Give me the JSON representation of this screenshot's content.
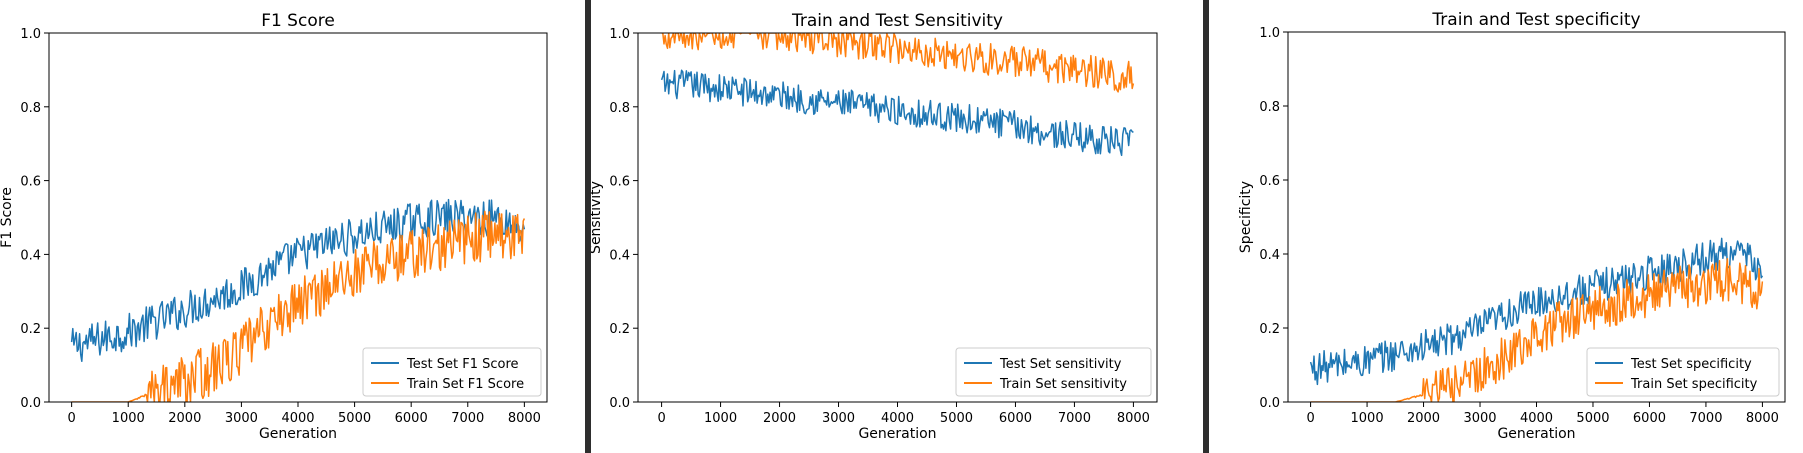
{
  "colors": {
    "test": "#1f77b4",
    "train": "#ff7f0e",
    "axis": "#000000",
    "separator": "#2e2e2e"
  },
  "chart_data": [
    {
      "type": "line",
      "title": "F1 Score",
      "xlabel": "Generation",
      "ylabel": "F1 Score",
      "xlim": [
        -400,
        8400
      ],
      "ylim": [
        0.0,
        1.0
      ],
      "xticks": [
        "0",
        "1000",
        "2000",
        "3000",
        "4000",
        "5000",
        "6000",
        "7000",
        "8000"
      ],
      "yticks": [
        "0.0",
        "0.2",
        "0.4",
        "0.6",
        "0.8",
        "1.0"
      ],
      "grid": false,
      "legend": "lower-right",
      "series": [
        {
          "name": "Test Set F1 Score",
          "x": [
            0,
            500,
            1000,
            1500,
            2000,
            2500,
            3000,
            3500,
            4000,
            4500,
            5000,
            5500,
            6000,
            6500,
            7000,
            7500,
            8000
          ],
          "y": [
            0.15,
            0.17,
            0.19,
            0.22,
            0.25,
            0.28,
            0.31,
            0.36,
            0.4,
            0.43,
            0.45,
            0.47,
            0.49,
            0.5,
            0.5,
            0.5,
            0.47
          ]
        },
        {
          "name": "Train Set F1 Score",
          "x": [
            0,
            500,
            1000,
            1500,
            2000,
            2500,
            3000,
            3500,
            4000,
            4500,
            5000,
            5500,
            6000,
            6500,
            7000,
            7500,
            8000
          ],
          "y": [
            0.0,
            0.0,
            0.0,
            0.03,
            0.06,
            0.09,
            0.14,
            0.21,
            0.27,
            0.31,
            0.35,
            0.38,
            0.4,
            0.42,
            0.44,
            0.46,
            0.44
          ]
        }
      ]
    },
    {
      "type": "line",
      "title": "Train and Test Sensitivity",
      "xlabel": "Generation",
      "ylabel": "Sensitivity",
      "xlim": [
        -400,
        8400
      ],
      "ylim": [
        0.0,
        1.0
      ],
      "xticks": [
        "0",
        "1000",
        "2000",
        "3000",
        "4000",
        "5000",
        "6000",
        "7000",
        "8000"
      ],
      "yticks": [
        "0.0",
        "0.2",
        "0.4",
        "0.6",
        "0.8",
        "1.0"
      ],
      "grid": false,
      "legend": "lower-right",
      "series": [
        {
          "name": "Test Set sensitivity",
          "x": [
            0,
            500,
            1000,
            1500,
            2000,
            2500,
            3000,
            3500,
            4000,
            4500,
            5000,
            5500,
            6000,
            6500,
            7000,
            7500,
            8000
          ],
          "y": [
            0.86,
            0.86,
            0.85,
            0.84,
            0.83,
            0.82,
            0.81,
            0.8,
            0.79,
            0.78,
            0.77,
            0.76,
            0.75,
            0.73,
            0.72,
            0.71,
            0.7
          ]
        },
        {
          "name": "Train Set sensitivity",
          "x": [
            0,
            500,
            1000,
            1500,
            2000,
            2500,
            3000,
            3500,
            4000,
            4500,
            5000,
            5500,
            6000,
            6500,
            7000,
            7500,
            8000
          ],
          "y": [
            1.0,
            1.0,
            1.0,
            1.0,
            1.0,
            0.99,
            0.98,
            0.97,
            0.96,
            0.95,
            0.94,
            0.93,
            0.92,
            0.91,
            0.9,
            0.89,
            0.88
          ]
        }
      ]
    },
    {
      "type": "line",
      "title": "Train and Test specificity",
      "xlabel": "Generation",
      "ylabel": "Specificity",
      "xlim": [
        -400,
        8400
      ],
      "ylim": [
        0.0,
        1.0
      ],
      "xticks": [
        "0",
        "1000",
        "2000",
        "3000",
        "4000",
        "5000",
        "6000",
        "7000",
        "8000"
      ],
      "yticks": [
        "0.0",
        "0.2",
        "0.4",
        "0.6",
        "0.8",
        "1.0"
      ],
      "grid": false,
      "legend": "lower-right",
      "series": [
        {
          "name": "Test Set specificity",
          "x": [
            0,
            500,
            1000,
            1500,
            2000,
            2500,
            3000,
            3500,
            4000,
            4500,
            5000,
            5500,
            6000,
            6500,
            7000,
            7500,
            8000
          ],
          "y": [
            0.09,
            0.1,
            0.11,
            0.13,
            0.15,
            0.17,
            0.2,
            0.24,
            0.27,
            0.29,
            0.31,
            0.33,
            0.35,
            0.37,
            0.39,
            0.41,
            0.36
          ]
        },
        {
          "name": "Train Set specificity",
          "x": [
            0,
            500,
            1000,
            1500,
            2000,
            2500,
            3000,
            3500,
            4000,
            4500,
            5000,
            5500,
            6000,
            6500,
            7000,
            7500,
            8000
          ],
          "y": [
            0.0,
            0.0,
            0.0,
            0.0,
            0.02,
            0.04,
            0.08,
            0.13,
            0.18,
            0.22,
            0.25,
            0.27,
            0.29,
            0.31,
            0.32,
            0.33,
            0.3
          ]
        }
      ]
    }
  ]
}
